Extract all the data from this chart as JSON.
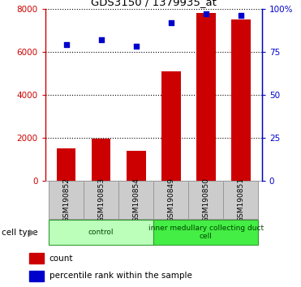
{
  "title": "GDS3150 / 1379935_at",
  "categories": [
    "GSM190852",
    "GSM190853",
    "GSM190854",
    "GSM190849",
    "GSM190850",
    "GSM190851"
  ],
  "counts": [
    1500,
    1950,
    1400,
    5100,
    7800,
    7500
  ],
  "percentile_ranks": [
    79,
    82,
    78,
    92,
    97,
    96
  ],
  "ylim_left": [
    0,
    8000
  ],
  "ylim_right": [
    0,
    100
  ],
  "yticks_left": [
    0,
    2000,
    4000,
    6000,
    8000
  ],
  "ytick_labels_left": [
    "0",
    "2000",
    "4000",
    "6000",
    "8000"
  ],
  "yticks_right": [
    0,
    25,
    50,
    75,
    100
  ],
  "ytick_labels_right": [
    "0",
    "25",
    "50",
    "75",
    "100%"
  ],
  "bar_color": "#cc0000",
  "dot_color": "#0000cc",
  "cell_type_groups": [
    {
      "label": "control",
      "indices": [
        0,
        1,
        2
      ],
      "color": "#bbffbb"
    },
    {
      "label": "inner medullary collecting duct\ncell",
      "indices": [
        3,
        4,
        5
      ],
      "color": "#44ee44"
    }
  ],
  "cell_type_label": "cell type",
  "legend_count": "count",
  "legend_percentile": "percentile rank within the sample",
  "bar_width": 0.55,
  "label_box_color": "#cccccc",
  "label_box_edge": "#999999"
}
